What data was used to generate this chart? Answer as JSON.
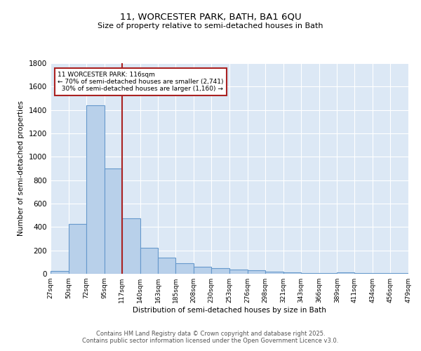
{
  "title": "11, WORCESTER PARK, BATH, BA1 6QU",
  "subtitle": "Size of property relative to semi-detached houses in Bath",
  "xlabel": "Distribution of semi-detached houses by size in Bath",
  "ylabel": "Number of semi-detached properties",
  "footnote1": "Contains HM Land Registry data © Crown copyright and database right 2025.",
  "footnote2": "Contains public sector information licensed under the Open Government Licence v3.0.",
  "bins": [
    27,
    50,
    72,
    95,
    117,
    140,
    163,
    185,
    208,
    230,
    253,
    276,
    298,
    321,
    343,
    366,
    389,
    411,
    434,
    456,
    479
  ],
  "values": [
    25,
    425,
    1440,
    900,
    475,
    220,
    140,
    90,
    60,
    48,
    38,
    30,
    20,
    10,
    8,
    4,
    12,
    5,
    4,
    4
  ],
  "bar_color": "#b8d0ea",
  "bar_edge_color": "#6699cc",
  "bg_color": "#dce8f5",
  "grid_color": "#ffffff",
  "vline_x": 117,
  "vline_color": "#aa2222",
  "annotation_text": "11 WORCESTER PARK: 116sqm\n← 70% of semi-detached houses are smaller (2,741)\n  30% of semi-detached houses are larger (1,160) →",
  "annotation_box_color": "#aa2222",
  "ylim": [
    0,
    1800
  ],
  "yticks": [
    0,
    200,
    400,
    600,
    800,
    1000,
    1200,
    1400,
    1600,
    1800
  ],
  "title_fontsize": 9.5,
  "subtitle_fontsize": 8,
  "footnote_fontsize": 6
}
